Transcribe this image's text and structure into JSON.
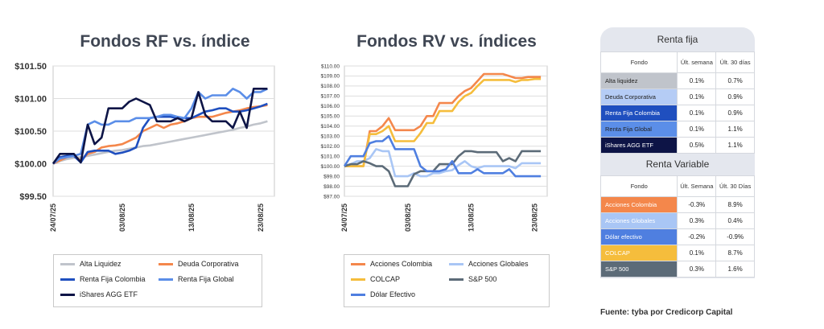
{
  "charts": [
    {
      "type": "line",
      "title": "Fondos RF vs. índice",
      "x_tick_labels": [
        "24/07/25",
        "03/08/25",
        "13/08/25",
        "23/08/25"
      ],
      "x_tick_positions": [
        0,
        10,
        20,
        30
      ],
      "x_range": [
        0,
        32
      ],
      "y_ticks": [
        99.5,
        100.0,
        100.5,
        101.0,
        101.5
      ],
      "y_tick_labels": [
        "$99.50",
        "$100.00",
        "$100.50",
        "$101.00",
        "$101.50"
      ],
      "ylim": [
        99.5,
        101.5
      ],
      "grid": true,
      "series": [
        {
          "name": "Alta Liquidez",
          "color": "#c0c4cb",
          "values": [
            100.0,
            100.04,
            100.07,
            100.09,
            100.1,
            100.12,
            100.14,
            100.16,
            100.18,
            100.2,
            100.21,
            100.23,
            100.25,
            100.27,
            100.28,
            100.3,
            100.32,
            100.34,
            100.36,
            100.38,
            100.4,
            100.42,
            100.44,
            100.46,
            100.48,
            100.5,
            100.52,
            100.55,
            100.57,
            100.6,
            100.62,
            100.65
          ]
        },
        {
          "name": "Deuda Corporativa",
          "color": "#f4874b",
          "values": [
            100.0,
            100.05,
            100.1,
            100.12,
            100.05,
            100.15,
            100.18,
            100.25,
            100.27,
            100.28,
            100.3,
            100.35,
            100.4,
            100.5,
            100.55,
            100.6,
            100.55,
            100.6,
            100.62,
            100.65,
            100.7,
            100.72,
            100.72,
            100.72,
            100.75,
            100.78,
            100.8,
            100.82,
            100.85,
            100.87,
            100.88,
            100.9
          ]
        },
        {
          "name": "Renta Fija Colombia",
          "color": "#1f4fbf",
          "values": [
            100.0,
            100.1,
            100.12,
            100.12,
            100.02,
            100.18,
            100.2,
            100.2,
            100.2,
            100.15,
            100.17,
            100.2,
            100.25,
            100.55,
            100.7,
            100.72,
            100.72,
            100.72,
            100.7,
            100.7,
            100.7,
            100.75,
            100.8,
            100.82,
            100.85,
            100.85,
            100.8,
            100.8,
            100.82,
            100.85,
            100.88,
            100.92
          ]
        },
        {
          "name": "Renta Fija Global",
          "color": "#5b8ee8",
          "values": [
            100.0,
            100.08,
            100.1,
            100.12,
            100.15,
            100.6,
            100.65,
            100.6,
            100.6,
            100.65,
            100.65,
            100.65,
            100.7,
            100.7,
            100.7,
            100.72,
            100.75,
            100.75,
            100.72,
            100.7,
            100.85,
            101.1,
            101.0,
            101.05,
            101.05,
            101.05,
            101.15,
            101.1,
            101.0,
            101.1,
            101.1,
            101.15
          ]
        },
        {
          "name": "iShares AGG ETF",
          "color": "#0d1446",
          "values": [
            100.0,
            100.15,
            100.15,
            100.15,
            100.02,
            100.6,
            100.3,
            100.4,
            100.85,
            100.85,
            100.85,
            100.95,
            101.0,
            100.95,
            100.9,
            100.65,
            100.65,
            100.65,
            100.7,
            100.65,
            100.7,
            101.1,
            100.75,
            100.65,
            100.65,
            100.65,
            100.55,
            100.8,
            100.55,
            101.15,
            101.15,
            101.15
          ]
        }
      ],
      "legend_placement": "bottom",
      "legend_layout": [
        [
          0,
          1
        ],
        [
          2,
          3
        ],
        [
          4
        ]
      ]
    },
    {
      "type": "line",
      "title": "Fondos RV vs. índices",
      "x_tick_labels": [
        "24/07/25",
        "03/08/25",
        "13/08/25",
        "23/08/25"
      ],
      "x_tick_positions": [
        0,
        10,
        20,
        30
      ],
      "x_range": [
        0,
        32
      ],
      "y_ticks": [
        97,
        98,
        99,
        100,
        101,
        102,
        103,
        104,
        105,
        106,
        107,
        108,
        109,
        110
      ],
      "y_tick_labels": [
        "$97.00",
        "$98.00",
        "$99.00",
        "$100.00",
        "$101.00",
        "$102.00",
        "$103.00",
        "$104.00",
        "$105.00",
        "$106.00",
        "$107.00",
        "$108.00",
        "$109.00",
        "$110.00"
      ],
      "ylim": [
        97,
        110
      ],
      "grid": true,
      "series": [
        {
          "name": "Acciones Colombia",
          "color": "#f4874b",
          "values": [
            100.0,
            100.0,
            100.0,
            100.0,
            103.5,
            103.5,
            104.0,
            104.8,
            103.6,
            103.6,
            103.6,
            103.6,
            104.0,
            105.0,
            105.0,
            106.3,
            106.3,
            106.3,
            107.0,
            107.5,
            107.8,
            108.5,
            109.2,
            109.2,
            109.2,
            109.2,
            109.0,
            108.8,
            108.8,
            108.9,
            108.9,
            108.9
          ]
        },
        {
          "name": "Acciones Globales",
          "color": "#a9c6f5",
          "values": [
            100.0,
            100.2,
            100.5,
            100.5,
            100.8,
            101.7,
            101.5,
            101.5,
            99.0,
            99.0,
            99.0,
            99.3,
            99.0,
            99.0,
            99.3,
            99.3,
            99.5,
            99.6,
            100.1,
            100.5,
            100.0,
            99.8,
            100.0,
            100.0,
            100.0,
            100.0,
            100.0,
            99.8,
            100.3,
            100.3,
            100.3,
            100.3
          ]
        },
        {
          "name": "COLCAP",
          "color": "#f5bd3c",
          "values": [
            100.0,
            100.0,
            100.0,
            100.0,
            103.2,
            103.2,
            103.5,
            104.0,
            102.5,
            102.5,
            102.5,
            102.5,
            103.3,
            104.3,
            104.3,
            105.5,
            105.5,
            105.5,
            106.4,
            107.0,
            107.3,
            108.0,
            108.6,
            108.6,
            108.6,
            108.6,
            108.6,
            108.4,
            108.6,
            108.6,
            108.7,
            108.7
          ]
        },
        {
          "name": "S&P 500",
          "color": "#5c6b78",
          "values": [
            100.0,
            100.2,
            100.2,
            100.5,
            100.3,
            100.0,
            100.0,
            99.5,
            98.0,
            98.0,
            98.0,
            99.2,
            99.5,
            99.5,
            99.5,
            100.2,
            100.2,
            100.2,
            101.0,
            101.5,
            101.5,
            101.4,
            101.4,
            101.4,
            101.4,
            100.5,
            100.8,
            100.5,
            101.5,
            101.5,
            101.5,
            101.5
          ]
        },
        {
          "name": "Dólar Efectivo",
          "color": "#4f7fe0",
          "values": [
            100.0,
            101.0,
            101.0,
            101.0,
            102.3,
            102.5,
            102.5,
            103.0,
            101.7,
            101.7,
            101.7,
            101.7,
            100.0,
            99.5,
            99.5,
            99.5,
            99.7,
            100.5,
            99.3,
            99.3,
            99.3,
            99.7,
            99.3,
            99.3,
            99.3,
            99.3,
            99.7,
            99.0,
            99.0,
            99.0,
            99.0,
            99.0
          ]
        }
      ],
      "legend_placement": "bottom",
      "legend_layout": [
        [
          0,
          1
        ],
        [
          2,
          3
        ],
        [
          4
        ]
      ]
    }
  ],
  "tables": {
    "renta_fija": {
      "title": "Renta fija",
      "headers": [
        "Fondo",
        "Últ. semana",
        "Últ. 30 días"
      ],
      "rows": [
        {
          "name": "Alta liquidez",
          "week": "0.1%",
          "month": "0.7%",
          "bg": "#c0c4cb",
          "fg": "#222222"
        },
        {
          "name": "Deuda Corporativa",
          "week": "0.1%",
          "month": "0.9%",
          "bg": "#b5ccf5",
          "fg": "#222222"
        },
        {
          "name": "Renta Fija Colombia",
          "week": "0.1%",
          "month": "0.9%",
          "bg": "#1f4fbf",
          "fg": "#ffffff"
        },
        {
          "name": "Renta Fija Global",
          "week": "0.1%",
          "month": "1.1%",
          "bg": "#5b8ee8",
          "fg": "#222222"
        },
        {
          "name": "iShares AGG ETF",
          "week": "0.5%",
          "month": "1.1%",
          "bg": "#0d1446",
          "fg": "#ffffff"
        }
      ]
    },
    "renta_variable": {
      "title": "Renta Variable",
      "headers": [
        "Fondo",
        "Últ. Semana",
        "Últ. 30 Días"
      ],
      "rows": [
        {
          "name": "Acciones Colombia",
          "week": "-0.3%",
          "month": "8.9%",
          "bg": "#f4874b",
          "fg": "#ffffff"
        },
        {
          "name": "Acciones Globales",
          "week": "0.3%",
          "month": "0.4%",
          "bg": "#a9c6f5",
          "fg": "#ffffff"
        },
        {
          "name": "Dólar efectivo",
          "week": "-0.2%",
          "month": "-0.9%",
          "bg": "#4f7fe0",
          "fg": "#ffffff"
        },
        {
          "name": "COLCAP",
          "week": "0.1%",
          "month": "8.7%",
          "bg": "#f5bd3c",
          "fg": "#ffffff"
        },
        {
          "name": "S&P 500",
          "week": "0.3%",
          "month": "1.6%",
          "bg": "#5c6b78",
          "fg": "#ffffff"
        }
      ]
    }
  },
  "source": "Fuente: tyba por Credicorp Capital"
}
